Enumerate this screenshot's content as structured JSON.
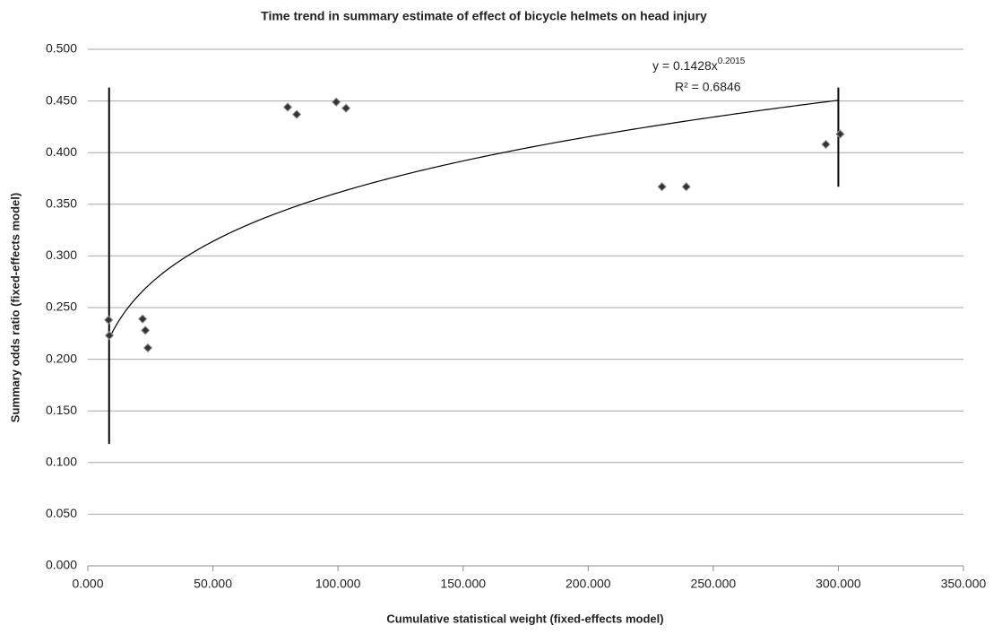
{
  "chart_data": {
    "type": "scatter",
    "title": "Time trend in summary estimate of effect of bicycle helmets on head injury",
    "x_label": "Cumulative statistical weight (fixed-effects model)",
    "y_label": "Summary odds ratio (fixed-effects model)",
    "series": [
      {
        "color": "#333333",
        "x": [
          8.3,
          8.6,
          21.9,
          23.0,
          24.0,
          79.9,
          83.5,
          99.3,
          103.2,
          229.5,
          239.2,
          295.0,
          300.7
        ],
        "values": [
          0.238,
          0.223,
          0.239,
          0.228,
          0.211,
          0.444,
          0.437,
          0.449,
          0.443,
          0.367,
          0.367,
          0.408,
          0.418
        ]
      }
    ],
    "vertical_lines": [
      {
        "x": 8.5,
        "y": [
          0.118,
          0.463
        ]
      },
      {
        "x": 300,
        "y": [
          0.367,
          0.463
        ]
      }
    ],
    "trendline": {
      "equation": "y = 0.1428x",
      "exponent": "0.2015",
      "r2": "R² = 0.6846",
      "a": 0.1428,
      "b": 0.2015,
      "xrange": [
        8.5,
        300
      ]
    },
    "xlim": [
      0,
      350
    ],
    "xticks": [
      {
        "value": 0,
        "label": "0.000"
      },
      {
        "value": 50,
        "label": "50.000"
      },
      {
        "value": 100,
        "label": "100.000"
      },
      {
        "value": 150,
        "label": "150.000"
      },
      {
        "value": 200,
        "label": "200.000"
      },
      {
        "value": 250,
        "label": "250.000"
      },
      {
        "value": 300,
        "label": "300.000"
      },
      {
        "value": 350,
        "label": "350.000"
      }
    ],
    "ylim": [
      0,
      0.5
    ],
    "yticks": [
      {
        "value": 0,
        "label": "0.000"
      },
      {
        "value": 0.05,
        "label": "0.050"
      },
      {
        "value": 0.1,
        "label": "0.100"
      },
      {
        "value": 0.15,
        "label": "0.150"
      },
      {
        "value": 0.2,
        "label": "0.200"
      },
      {
        "value": 0.25,
        "label": "0.250"
      },
      {
        "value": 0.3,
        "label": "0.300"
      },
      {
        "value": 0.35,
        "label": "0.350"
      },
      {
        "value": 0.4,
        "label": "0.400"
      },
      {
        "value": 0.45,
        "label": "0.450"
      },
      {
        "value": 0.5,
        "label": "0.500"
      }
    ],
    "grid": true
  }
}
